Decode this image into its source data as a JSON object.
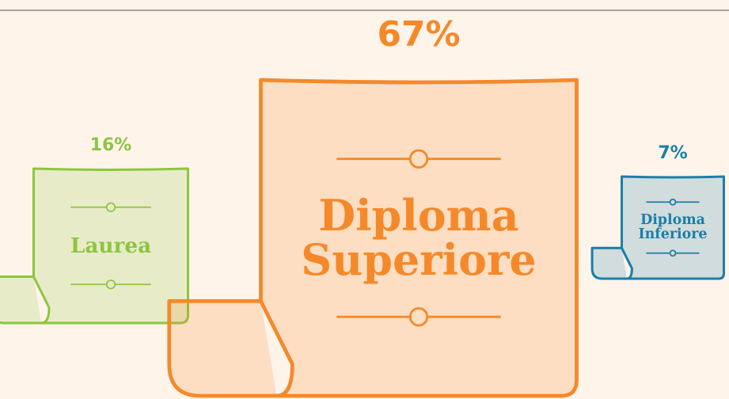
{
  "chart_data": {
    "type": "scroll",
    "categories": [
      "Laurea",
      "Diploma Superiore",
      "Diploma Inferiore"
    ],
    "values": [
      16,
      67,
      7
    ],
    "value_labels": [
      "16%",
      "67%",
      "7%"
    ],
    "colors": [
      "#8cc63f",
      "#f5892a",
      "#1a7fa8"
    ]
  }
}
